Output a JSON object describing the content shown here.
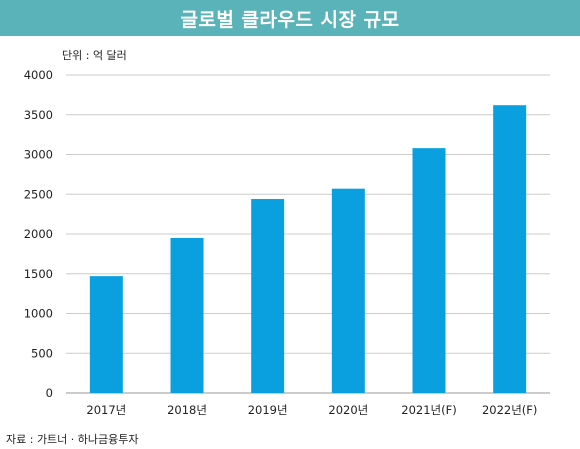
{
  "title": "글로벌 클라우드 시장 규모",
  "unit_label": "단위 : 억 달러",
  "source": "자료 : 가트너 · 하나금융투자",
  "colors": {
    "bar": "#0aa0e0",
    "title_bg": "#5ab3b8",
    "grid": "#cccccc"
  },
  "chart_data": {
    "type": "bar",
    "title": "글로벌 클라우드 시장 규모",
    "ylabel": "",
    "xlabel": "",
    "unit": "단위 : 억 달러",
    "categories": [
      "2017년",
      "2018년",
      "2019년",
      "2020년",
      "2021년(F)",
      "2022년(F)"
    ],
    "values": [
      1470,
      1950,
      2440,
      2570,
      3080,
      3620
    ],
    "ylim": [
      0,
      4000
    ],
    "yticks": [
      0,
      500,
      1000,
      1500,
      2000,
      2500,
      3000,
      3500,
      4000
    ],
    "grid": true,
    "legend": "none"
  }
}
